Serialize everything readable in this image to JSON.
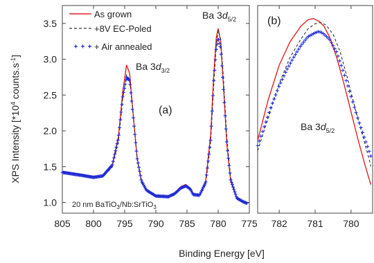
{
  "figure": {
    "ylabel_main": "XPS Intensity [*10",
    "ylabel_sup": "4",
    "ylabel_tail": " counts.s",
    "ylabel_sup2": "-1",
    "ylabel_close": "]",
    "xlabel": "Binding Energy [eV]"
  },
  "chart_data": [
    {
      "type": "line",
      "panel_label": "(a)",
      "xlim": [
        805,
        775
      ],
      "ylim": [
        0.85,
        3.75
      ],
      "xticks": [
        805,
        800,
        795,
        790,
        785,
        780,
        775
      ],
      "yticks": [
        1.0,
        1.5,
        2.0,
        2.5,
        3.0,
        3.5
      ],
      "ytick_labels": [
        "1.0",
        "1.5",
        "2.0",
        "2.5",
        "3.0",
        "3.5"
      ],
      "legend": {
        "position": "top-left",
        "entries": [
          {
            "label": "As grown",
            "style": "solid",
            "color": "#e02020"
          },
          {
            "label": "+8V EC-Poled",
            "style": "dashed",
            "color": "#333333"
          },
          {
            "label": "+ Air annealed",
            "style": "marker",
            "color": "#1f2bd6"
          }
        ]
      },
      "annotations": {
        "peak_32_main": "Ba 3",
        "peak_32_ital": "d",
        "peak_32_sub": "3/2",
        "peak_52_main": "Ba 3",
        "peak_52_ital": "d",
        "peak_52_sub": "5/2",
        "sample_a": "20 nm BaTiO",
        "sample_sub1": "3",
        "sample_b": "/Nb:SrTiO",
        "sample_sub2": "3"
      },
      "series": [
        {
          "name": "As grown",
          "color": "#e02020",
          "x": [
            805,
            802,
            800,
            798.5,
            797,
            796,
            795.3,
            794.7,
            794.2,
            793.7,
            793,
            792.3,
            791.5,
            790,
            788,
            787,
            786,
            785.2,
            784.5,
            784,
            783,
            782,
            781.2,
            780.7,
            780.3,
            780,
            779.6,
            779.2,
            778.6,
            778,
            777,
            776,
            775.4
          ],
          "y": [
            1.43,
            1.39,
            1.36,
            1.37,
            1.52,
            1.92,
            2.55,
            2.92,
            2.8,
            2.3,
            1.62,
            1.3,
            1.17,
            1.09,
            1.09,
            1.13,
            1.22,
            1.25,
            1.2,
            1.12,
            1.1,
            1.3,
            1.95,
            2.8,
            3.3,
            3.43,
            3.25,
            2.7,
            1.8,
            1.3,
            1.05,
            1.0,
            0.98
          ]
        },
        {
          "name": "+8V EC-Poled",
          "color": "#333333",
          "x": [
            805,
            802,
            800,
            798.5,
            797,
            796,
            795.3,
            794.7,
            794.2,
            793.7,
            793,
            792.3,
            791.5,
            790,
            788,
            787,
            786,
            785.2,
            784.5,
            784,
            783,
            782,
            781.2,
            780.7,
            780.3,
            780,
            779.6,
            779.2,
            778.6,
            778,
            777,
            776,
            775.4
          ],
          "y": [
            1.43,
            1.39,
            1.36,
            1.36,
            1.49,
            1.85,
            2.45,
            2.78,
            2.72,
            2.28,
            1.6,
            1.28,
            1.16,
            1.08,
            1.08,
            1.12,
            1.2,
            1.23,
            1.19,
            1.11,
            1.09,
            1.25,
            1.85,
            2.65,
            3.2,
            3.4,
            3.28,
            2.8,
            1.9,
            1.35,
            1.06,
            1.0,
            0.98
          ]
        },
        {
          "name": "+ Air annealed",
          "color": "#1f2bd6",
          "x": [
            805,
            802,
            800,
            798.5,
            797,
            796,
            795.3,
            794.7,
            794.2,
            793.7,
            793,
            792.3,
            791.5,
            790,
            788,
            787,
            786,
            785.2,
            784.5,
            784,
            783,
            782,
            781.2,
            780.7,
            780.3,
            780,
            779.6,
            779.2,
            778.6,
            778,
            777,
            776,
            775.4
          ],
          "y": [
            1.42,
            1.38,
            1.35,
            1.37,
            1.52,
            1.9,
            2.48,
            2.75,
            2.7,
            2.25,
            1.62,
            1.3,
            1.17,
            1.09,
            1.08,
            1.12,
            1.2,
            1.23,
            1.19,
            1.11,
            1.1,
            1.28,
            1.88,
            2.7,
            3.15,
            3.3,
            3.15,
            2.65,
            1.8,
            1.32,
            1.06,
            1.01,
            0.99
          ]
        }
      ]
    },
    {
      "type": "line",
      "panel_label": "(b)",
      "xlim": [
        782.6,
        779.4
      ],
      "ylim": [
        2.9,
        3.7
      ],
      "xticks": [
        782,
        781,
        780
      ],
      "annotations": {
        "peak_main": "Ba 3",
        "peak_ital": "d",
        "peak_sub": "5/2"
      },
      "series": [
        {
          "name": "As grown",
          "color": "#e02020",
          "x": [
            782.6,
            782.3,
            782.0,
            781.7,
            781.4,
            781.2,
            781.05,
            780.9,
            780.75,
            780.6,
            780.4,
            780.2,
            780.0,
            779.8,
            779.6,
            779.45
          ],
          "y": [
            3.18,
            3.34,
            3.47,
            3.56,
            3.62,
            3.645,
            3.65,
            3.64,
            3.62,
            3.58,
            3.5,
            3.4,
            3.29,
            3.18,
            3.08,
            3.01
          ]
        },
        {
          "name": "+8V EC-Poled",
          "color": "#333333",
          "x": [
            782.6,
            782.3,
            782.0,
            781.7,
            781.4,
            781.2,
            781.0,
            780.85,
            780.7,
            780.5,
            780.3,
            780.1,
            779.9,
            779.7,
            779.5,
            779.45
          ],
          "y": [
            3.14,
            3.27,
            3.4,
            3.5,
            3.57,
            3.61,
            3.63,
            3.635,
            3.625,
            3.59,
            3.52,
            3.42,
            3.31,
            3.21,
            3.11,
            3.08
          ]
        },
        {
          "name": "+ Air annealed",
          "color": "#1f2bd6",
          "x": [
            782.6,
            782.4,
            782.2,
            782.0,
            781.8,
            781.6,
            781.4,
            781.2,
            781.0,
            780.9,
            780.8,
            780.6,
            780.4,
            780.2,
            780.0,
            779.8,
            779.6,
            779.45
          ],
          "y": [
            3.16,
            3.24,
            3.32,
            3.39,
            3.45,
            3.5,
            3.545,
            3.58,
            3.595,
            3.6,
            3.595,
            3.57,
            3.52,
            3.44,
            3.35,
            3.26,
            3.18,
            3.12
          ]
        }
      ]
    }
  ]
}
